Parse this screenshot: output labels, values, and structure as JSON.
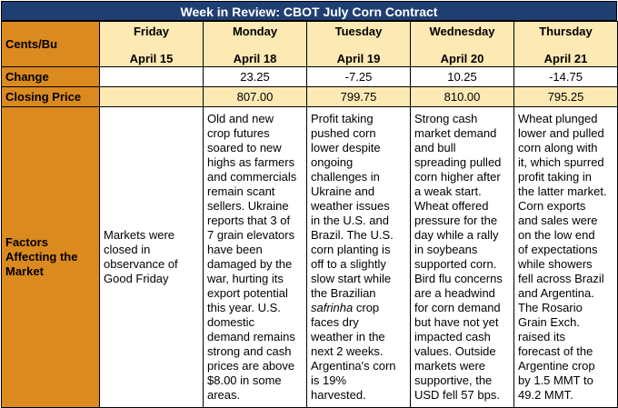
{
  "title": "Week in Review: CBOT July Corn Contract",
  "header_label": "Cents/Bu",
  "days": [
    {
      "name": "Friday",
      "date": "April 15"
    },
    {
      "name": "Monday",
      "date": "April 18"
    },
    {
      "name": "Tuesday",
      "date": "April 19"
    },
    {
      "name": "Wednesday",
      "date": "April 20"
    },
    {
      "name": "Thursday",
      "date": "April 21"
    }
  ],
  "change": {
    "label": "Change",
    "values": [
      "",
      "23.25",
      "-7.25",
      "10.25",
      "-14.75"
    ]
  },
  "closing": {
    "label": "Closing Price",
    "values": [
      "",
      "807.00",
      "799.75",
      "810.00",
      "795.25"
    ]
  },
  "factors": {
    "label": "Factors Affecting the Market",
    "texts": [
      "Markets were\nclosed in\nobservance of\nGood Friday",
      "Old and new\ncrop futures\nsoared to new\nhighs as farmers\nand commercials\nremain scant\nsellers. Ukraine\nreports that 3 of\n7 grain elevators\nhave been\ndamaged by the\nwar, hurting its\nexport potential\nthis year. U.S.\ndomestic\ndemand remains\nstrong and cash\nprices are above\n$8.00 in some\nareas.",
      "Profit taking\npushed corn\nlower despite\nongoing\nchallenges in\nUkraine and\nweather issues\nin the U.S. and\nBrazil. The U.S.\ncorn planting is\noff to a slightly\nslow start while\nthe Brazilian\nsafrinha crop\nfaces dry\nweather in the\nnext 2 weeks.\nArgentina's corn\nis 19%\nharvested.",
      "Strong cash\nmarket demand\nand bull\nspreading pulled\ncorn higher after\na weak start.\nWheat offered\npressure for the\nday while a rally\nin soybeans\nsupported corn.\nBird flu concerns\nare a headwind\nfor corn demand\nbut have not yet\nimpacted cash\nvalues. Outside\nmarkets were\nsupportive, the\nUSD fell 57 bps.",
      "Wheat plunged\nlower and pulled\ncorn along with\nit, which spurred\nprofit taking in\nthe latter market.\nCorn exports\nand sales were\non the low end\nof expectations\nwhile showers\nfell across Brazil\nand Argentina.\nThe Rosario\nGrain Exch.\nraised its\nforecast of the\nArgentine crop\nby 1.5 MMT to\n49.2 MMT."
    ]
  },
  "colors": {
    "title_bg": "#1f3f73",
    "label_bg": "#db8a1f",
    "header_bg": "#fce9b3"
  }
}
